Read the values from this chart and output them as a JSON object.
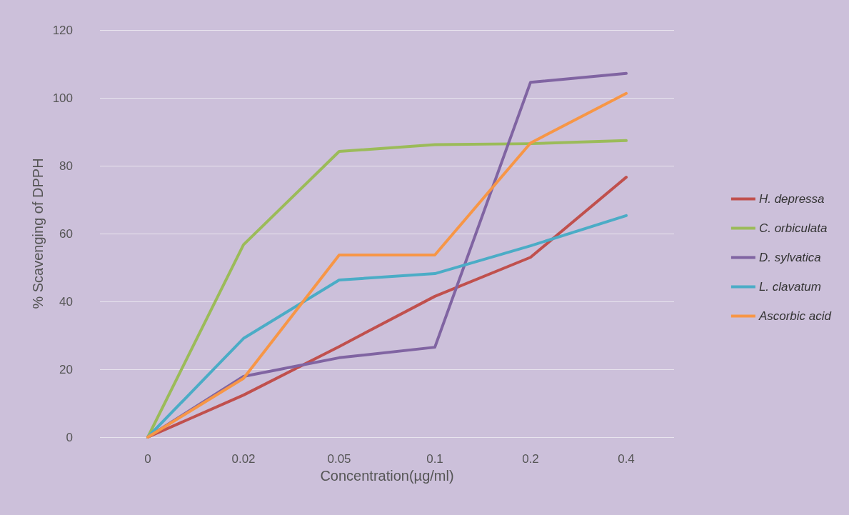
{
  "chart_data": {
    "type": "line",
    "xlabel": "Concentration(µg/ml)",
    "ylabel": "% Scavenging of DPPH",
    "categories": [
      "0",
      "0.02",
      "0.05",
      "0.1",
      "0.2",
      "0.4"
    ],
    "series": [
      {
        "name": "H. depressa",
        "color": "#c0504d",
        "values": [
          0,
          12.4,
          26.7,
          41.5,
          53,
          76.6
        ]
      },
      {
        "name": "C. orbiculata",
        "color": "#9bbb59",
        "values": [
          0,
          56.7,
          84.2,
          86.2,
          86.5,
          87.4
        ]
      },
      {
        "name": "D. sylvatica",
        "color": "#8064a2",
        "values": [
          0,
          17.9,
          23.4,
          26.5,
          104.6,
          107.2
        ]
      },
      {
        "name": "L. clavatum",
        "color": "#4bacc6",
        "values": [
          0,
          29.1,
          46.3,
          48.2,
          56.4,
          65.3
        ]
      },
      {
        "name": "Ascorbic acid",
        "color": "#f79646",
        "values": [
          0,
          17.3,
          53.7,
          53.7,
          86.7,
          101.3
        ]
      }
    ],
    "ylim": [
      0,
      120
    ],
    "yticks": [
      0,
      20,
      40,
      60,
      80,
      100,
      120
    ],
    "grid": "y",
    "legend": "right",
    "marker": "none",
    "line_style": "solid"
  }
}
